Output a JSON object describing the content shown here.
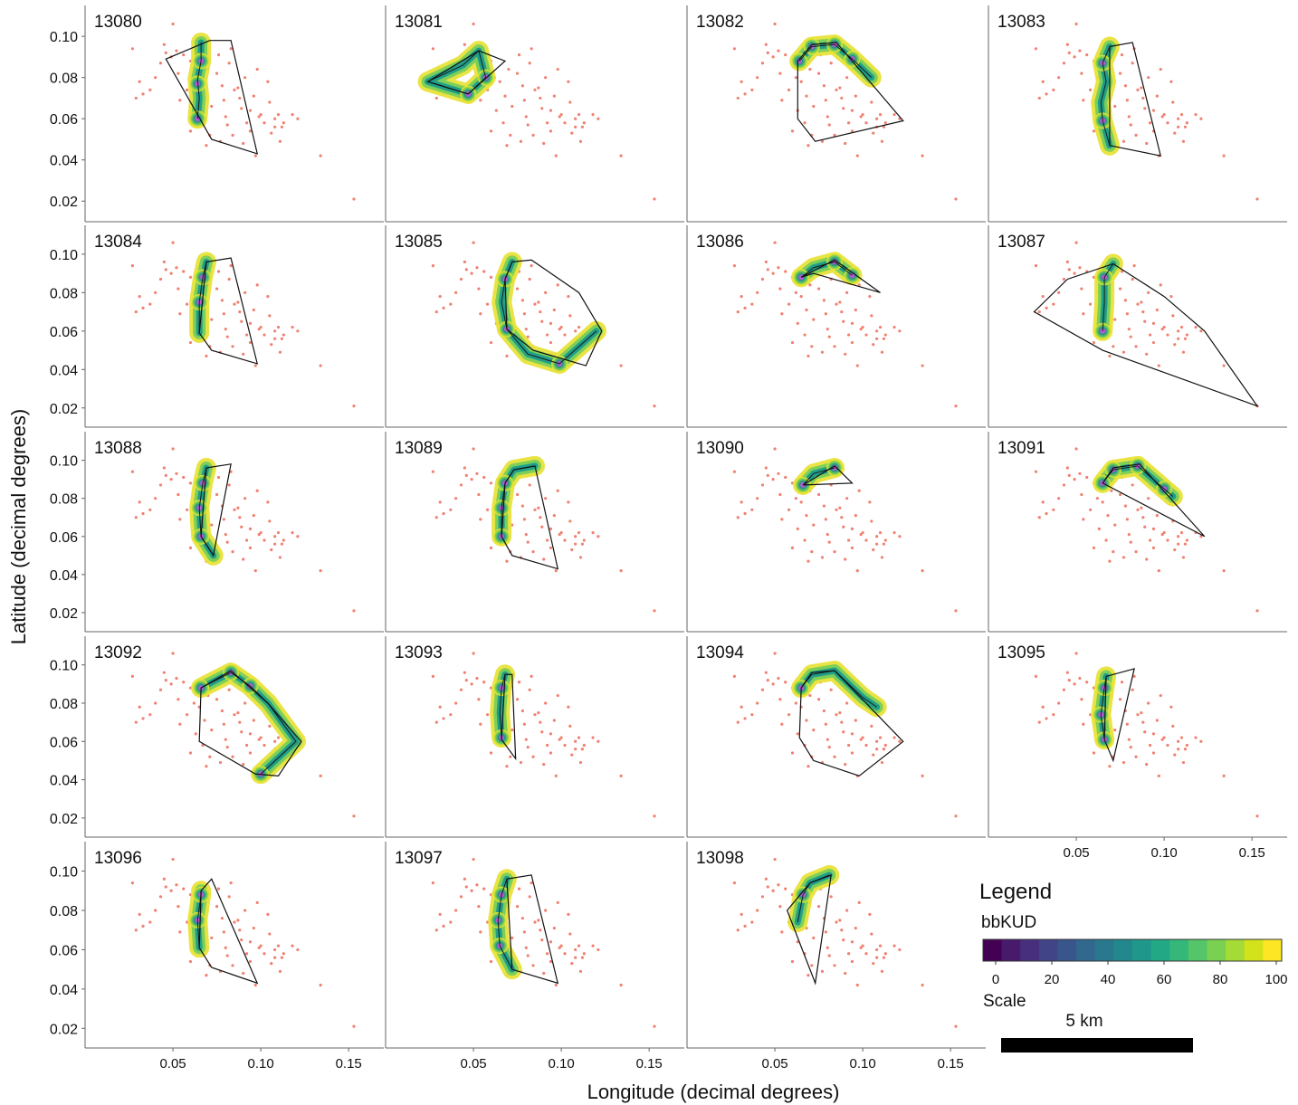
{
  "figure": {
    "xlabel": "Longitude (decimal degrees)",
    "ylabel": "Latitude (decimal degrees)"
  },
  "x_ticks": [
    "0.05",
    "0.10",
    "0.15"
  ],
  "y_ticks": [
    "0.10",
    "0.08",
    "0.06",
    "0.04",
    "0.02"
  ],
  "legend": {
    "title": "Legend",
    "colorbar_label": "bbKUD",
    "colorbar_ticks": [
      "0",
      "20",
      "40",
      "60",
      "80",
      "100"
    ],
    "colorbar_colors": [
      "#440154",
      "#481a6c",
      "#472f7d",
      "#414487",
      "#39568c",
      "#31688e",
      "#2a788e",
      "#23888e",
      "#1f988b",
      "#22a884",
      "#35b779",
      "#54c568",
      "#7ad151",
      "#a5db36",
      "#d2e21b",
      "#fde725"
    ],
    "scale_label": "Scale",
    "scale_text": "5 km"
  },
  "colors": {
    "detections": "#f08070",
    "mcp": "#111111",
    "track": "#1a1a1a"
  },
  "chart_data": {
    "type": "scatter",
    "xlim": [
      0.0,
      0.17
    ],
    "ylim": [
      0.01,
      0.115
    ],
    "receivers": {
      "x": [
        0.027,
        0.031,
        0.033,
        0.029,
        0.05,
        0.043,
        0.046,
        0.049,
        0.052,
        0.056,
        0.06,
        0.062,
        0.065,
        0.068,
        0.07,
        0.072,
        0.075,
        0.078,
        0.08,
        0.082,
        0.085,
        0.088,
        0.091,
        0.094,
        0.098,
        0.102,
        0.105,
        0.108,
        0.11,
        0.113,
        0.118,
        0.045,
        0.053,
        0.058,
        0.063,
        0.067,
        0.071,
        0.076,
        0.083,
        0.087,
        0.092,
        0.096,
        0.1,
        0.104,
        0.108,
        0.112,
        0.121,
        0.134,
        0.153,
        0.077,
        0.084,
        0.09,
        0.097,
        0.06,
        0.069,
        0.079,
        0.089,
        0.099,
        0.106,
        0.111,
        0.054,
        0.04,
        0.037,
        0.081,
        0.094
      ],
      "y": [
        0.094,
        0.078,
        0.072,
        0.07,
        0.106,
        0.087,
        0.092,
        0.09,
        0.093,
        0.091,
        0.088,
        0.08,
        0.078,
        0.071,
        0.084,
        0.066,
        0.082,
        0.076,
        0.061,
        0.087,
        0.074,
        0.07,
        0.08,
        0.064,
        0.084,
        0.058,
        0.068,
        0.056,
        0.062,
        0.058,
        0.062,
        0.096,
        0.082,
        0.074,
        0.064,
        0.058,
        0.052,
        0.091,
        0.094,
        0.075,
        0.058,
        0.071,
        0.062,
        0.078,
        0.06,
        0.056,
        0.06,
        0.042,
        0.021,
        0.049,
        0.052,
        0.048,
        0.042,
        0.054,
        0.047,
        0.069,
        0.065,
        0.061,
        0.053,
        0.049,
        0.069,
        0.08,
        0.074,
        0.057,
        0.054
      ]
    },
    "panels": [
      {
        "id": "13080",
        "track": [
          [
            0.066,
            0.097
          ],
          [
            0.066,
            0.088
          ],
          [
            0.064,
            0.079
          ],
          [
            0.065,
            0.07
          ],
          [
            0.064,
            0.06
          ]
        ],
        "hotspots": [
          [
            0.066,
            0.088
          ],
          [
            0.064,
            0.077
          ],
          [
            0.064,
            0.06
          ]
        ],
        "mcp": [
          [
            0.046,
            0.089
          ],
          [
            0.071,
            0.098
          ],
          [
            0.083,
            0.098
          ],
          [
            0.098,
            0.043
          ],
          [
            0.072,
            0.05
          ]
        ]
      },
      {
        "id": "13081",
        "track": [
          [
            0.024,
            0.078
          ],
          [
            0.047,
            0.072
          ],
          [
            0.057,
            0.08
          ],
          [
            0.053,
            0.093
          ],
          [
            0.044,
            0.086
          ],
          [
            0.024,
            0.078
          ]
        ],
        "hotspots": [
          [
            0.047,
            0.072
          ],
          [
            0.057,
            0.08
          ]
        ],
        "mcp": [
          [
            0.024,
            0.078
          ],
          [
            0.053,
            0.093
          ],
          [
            0.068,
            0.088
          ],
          [
            0.047,
            0.072
          ]
        ]
      },
      {
        "id": "13082",
        "track": [
          [
            0.064,
            0.088
          ],
          [
            0.071,
            0.095
          ],
          [
            0.084,
            0.096
          ],
          [
            0.094,
            0.089
          ],
          [
            0.105,
            0.08
          ]
        ],
        "hotspots": [
          [
            0.064,
            0.088
          ],
          [
            0.071,
            0.095
          ],
          [
            0.084,
            0.096
          ],
          [
            0.094,
            0.089
          ]
        ],
        "mcp": [
          [
            0.063,
            0.088
          ],
          [
            0.071,
            0.096
          ],
          [
            0.085,
            0.097
          ],
          [
            0.123,
            0.059
          ],
          [
            0.073,
            0.049
          ],
          [
            0.063,
            0.06
          ]
        ]
      },
      {
        "id": "13083",
        "track": [
          [
            0.069,
            0.095
          ],
          [
            0.065,
            0.087
          ],
          [
            0.067,
            0.078
          ],
          [
            0.064,
            0.068
          ],
          [
            0.065,
            0.059
          ],
          [
            0.069,
            0.047
          ]
        ],
        "hotspots": [
          [
            0.065,
            0.087
          ],
          [
            0.065,
            0.059
          ]
        ],
        "mcp": [
          [
            0.069,
            0.095
          ],
          [
            0.082,
            0.097
          ],
          [
            0.098,
            0.042
          ],
          [
            0.069,
            0.047
          ]
        ]
      },
      {
        "id": "13084",
        "track": [
          [
            0.069,
            0.096
          ],
          [
            0.067,
            0.088
          ],
          [
            0.065,
            0.075
          ],
          [
            0.065,
            0.059
          ]
        ],
        "hotspots": [
          [
            0.067,
            0.088
          ],
          [
            0.065,
            0.075
          ]
        ],
        "mcp": [
          [
            0.069,
            0.096
          ],
          [
            0.083,
            0.098
          ],
          [
            0.098,
            0.043
          ],
          [
            0.072,
            0.05
          ],
          [
            0.065,
            0.059
          ]
        ]
      },
      {
        "id": "13085",
        "track": [
          [
            0.072,
            0.096
          ],
          [
            0.068,
            0.087
          ],
          [
            0.066,
            0.075
          ],
          [
            0.069,
            0.061
          ],
          [
            0.081,
            0.048
          ],
          [
            0.099,
            0.043
          ],
          [
            0.12,
            0.06
          ]
        ],
        "hotspots": [
          [
            0.068,
            0.087
          ],
          [
            0.069,
            0.061
          ],
          [
            0.099,
            0.043
          ]
        ],
        "mcp": [
          [
            0.068,
            0.087
          ],
          [
            0.072,
            0.096
          ],
          [
            0.083,
            0.097
          ],
          [
            0.11,
            0.08
          ],
          [
            0.123,
            0.06
          ],
          [
            0.114,
            0.042
          ],
          [
            0.084,
            0.05
          ],
          [
            0.069,
            0.061
          ]
        ]
      },
      {
        "id": "13086",
        "track": [
          [
            0.065,
            0.088
          ],
          [
            0.072,
            0.093
          ],
          [
            0.084,
            0.096
          ],
          [
            0.094,
            0.089
          ]
        ],
        "hotspots": [
          [
            0.065,
            0.088
          ],
          [
            0.084,
            0.096
          ],
          [
            0.094,
            0.089
          ]
        ],
        "mcp": [
          [
            0.065,
            0.088
          ],
          [
            0.084,
            0.097
          ],
          [
            0.11,
            0.08
          ],
          [
            0.072,
            0.09
          ]
        ]
      },
      {
        "id": "13087",
        "track": [
          [
            0.071,
            0.095
          ],
          [
            0.066,
            0.088
          ],
          [
            0.066,
            0.075
          ],
          [
            0.065,
            0.06
          ]
        ],
        "hotspots": [
          [
            0.066,
            0.088
          ],
          [
            0.065,
            0.06
          ]
        ],
        "mcp": [
          [
            0.026,
            0.07
          ],
          [
            0.045,
            0.087
          ],
          [
            0.071,
            0.095
          ],
          [
            0.1,
            0.078
          ],
          [
            0.123,
            0.06
          ],
          [
            0.153,
            0.021
          ],
          [
            0.065,
            0.05
          ]
        ]
      },
      {
        "id": "13088",
        "track": [
          [
            0.069,
            0.096
          ],
          [
            0.067,
            0.088
          ],
          [
            0.065,
            0.075
          ],
          [
            0.066,
            0.06
          ],
          [
            0.073,
            0.05
          ]
        ],
        "hotspots": [
          [
            0.067,
            0.088
          ],
          [
            0.065,
            0.075
          ],
          [
            0.066,
            0.06
          ]
        ],
        "mcp": [
          [
            0.069,
            0.096
          ],
          [
            0.083,
            0.098
          ],
          [
            0.073,
            0.05
          ],
          [
            0.066,
            0.06
          ]
        ]
      },
      {
        "id": "13089",
        "track": [
          [
            0.085,
            0.097
          ],
          [
            0.073,
            0.095
          ],
          [
            0.068,
            0.088
          ],
          [
            0.066,
            0.075
          ],
          [
            0.066,
            0.06
          ]
        ],
        "hotspots": [
          [
            0.068,
            0.088
          ],
          [
            0.066,
            0.075
          ],
          [
            0.066,
            0.06
          ]
        ],
        "mcp": [
          [
            0.068,
            0.088
          ],
          [
            0.073,
            0.095
          ],
          [
            0.085,
            0.097
          ],
          [
            0.098,
            0.043
          ],
          [
            0.072,
            0.05
          ],
          [
            0.066,
            0.06
          ]
        ]
      },
      {
        "id": "13090",
        "track": [
          [
            0.066,
            0.087
          ],
          [
            0.072,
            0.093
          ],
          [
            0.084,
            0.096
          ]
        ],
        "hotspots": [
          [
            0.066,
            0.087
          ],
          [
            0.084,
            0.096
          ]
        ],
        "mcp": [
          [
            0.066,
            0.087
          ],
          [
            0.084,
            0.097
          ],
          [
            0.094,
            0.088
          ]
        ]
      },
      {
        "id": "13091",
        "track": [
          [
            0.065,
            0.088
          ],
          [
            0.071,
            0.095
          ],
          [
            0.085,
            0.097
          ],
          [
            0.1,
            0.085
          ],
          [
            0.105,
            0.081
          ]
        ],
        "hotspots": [
          [
            0.065,
            0.088
          ],
          [
            0.071,
            0.095
          ],
          [
            0.085,
            0.097
          ],
          [
            0.1,
            0.085
          ]
        ],
        "mcp": [
          [
            0.065,
            0.088
          ],
          [
            0.071,
            0.096
          ],
          [
            0.086,
            0.098
          ],
          [
            0.123,
            0.06
          ]
        ]
      },
      {
        "id": "13092",
        "track": [
          [
            0.066,
            0.088
          ],
          [
            0.083,
            0.096
          ],
          [
            0.094,
            0.089
          ],
          [
            0.104,
            0.08
          ],
          [
            0.12,
            0.06
          ],
          [
            0.1,
            0.043
          ]
        ],
        "hotspots": [
          [
            0.066,
            0.088
          ],
          [
            0.083,
            0.096
          ],
          [
            0.094,
            0.089
          ],
          [
            0.1,
            0.043
          ]
        ],
        "mcp": [
          [
            0.066,
            0.088
          ],
          [
            0.083,
            0.097
          ],
          [
            0.104,
            0.08
          ],
          [
            0.123,
            0.06
          ],
          [
            0.11,
            0.042
          ],
          [
            0.097,
            0.043
          ],
          [
            0.065,
            0.06
          ]
        ]
      },
      {
        "id": "13093",
        "track": [
          [
            0.068,
            0.095
          ],
          [
            0.066,
            0.088
          ],
          [
            0.065,
            0.075
          ],
          [
            0.066,
            0.062
          ]
        ],
        "hotspots": [
          [
            0.066,
            0.088
          ],
          [
            0.066,
            0.062
          ]
        ],
        "mcp": [
          [
            0.068,
            0.095
          ],
          [
            0.072,
            0.095
          ],
          [
            0.074,
            0.051
          ],
          [
            0.066,
            0.061
          ]
        ]
      },
      {
        "id": "13094",
        "track": [
          [
            0.065,
            0.088
          ],
          [
            0.071,
            0.095
          ],
          [
            0.084,
            0.097
          ],
          [
            0.1,
            0.083
          ],
          [
            0.108,
            0.078
          ]
        ],
        "hotspots": [
          [
            0.065,
            0.088
          ]
        ],
        "mcp": [
          [
            0.065,
            0.088
          ],
          [
            0.071,
            0.096
          ],
          [
            0.084,
            0.097
          ],
          [
            0.123,
            0.06
          ],
          [
            0.098,
            0.042
          ],
          [
            0.072,
            0.05
          ],
          [
            0.064,
            0.062
          ]
        ]
      },
      {
        "id": "13095",
        "track": [
          [
            0.067,
            0.094
          ],
          [
            0.066,
            0.088
          ],
          [
            0.064,
            0.074
          ],
          [
            0.066,
            0.061
          ]
        ],
        "hotspots": [
          [
            0.066,
            0.088
          ],
          [
            0.064,
            0.074
          ],
          [
            0.066,
            0.061
          ]
        ],
        "mcp": [
          [
            0.067,
            0.094
          ],
          [
            0.083,
            0.098
          ],
          [
            0.071,
            0.05
          ],
          [
            0.066,
            0.061
          ]
        ]
      },
      {
        "id": "13096",
        "track": [
          [
            0.066,
            0.09
          ],
          [
            0.066,
            0.088
          ],
          [
            0.064,
            0.075
          ],
          [
            0.065,
            0.061
          ]
        ],
        "hotspots": [
          [
            0.066,
            0.088
          ],
          [
            0.064,
            0.075
          ]
        ],
        "mcp": [
          [
            0.066,
            0.09
          ],
          [
            0.072,
            0.096
          ],
          [
            0.098,
            0.043
          ],
          [
            0.072,
            0.051
          ],
          [
            0.065,
            0.061
          ]
        ]
      },
      {
        "id": "13097",
        "track": [
          [
            0.069,
            0.096
          ],
          [
            0.066,
            0.088
          ],
          [
            0.064,
            0.075
          ],
          [
            0.065,
            0.062
          ],
          [
            0.072,
            0.05
          ]
        ],
        "hotspots": [
          [
            0.066,
            0.088
          ],
          [
            0.064,
            0.075
          ],
          [
            0.065,
            0.062
          ]
        ],
        "mcp": [
          [
            0.069,
            0.096
          ],
          [
            0.083,
            0.098
          ],
          [
            0.098,
            0.043
          ],
          [
            0.072,
            0.05
          ]
        ]
      },
      {
        "id": "13098",
        "track": [
          [
            0.081,
            0.098
          ],
          [
            0.07,
            0.094
          ],
          [
            0.066,
            0.088
          ],
          [
            0.063,
            0.074
          ]
        ],
        "hotspots": [
          [
            0.066,
            0.088
          ]
        ],
        "mcp": [
          [
            0.07,
            0.094
          ],
          [
            0.082,
            0.098
          ],
          [
            0.073,
            0.043
          ],
          [
            0.057,
            0.08
          ]
        ]
      }
    ]
  }
}
